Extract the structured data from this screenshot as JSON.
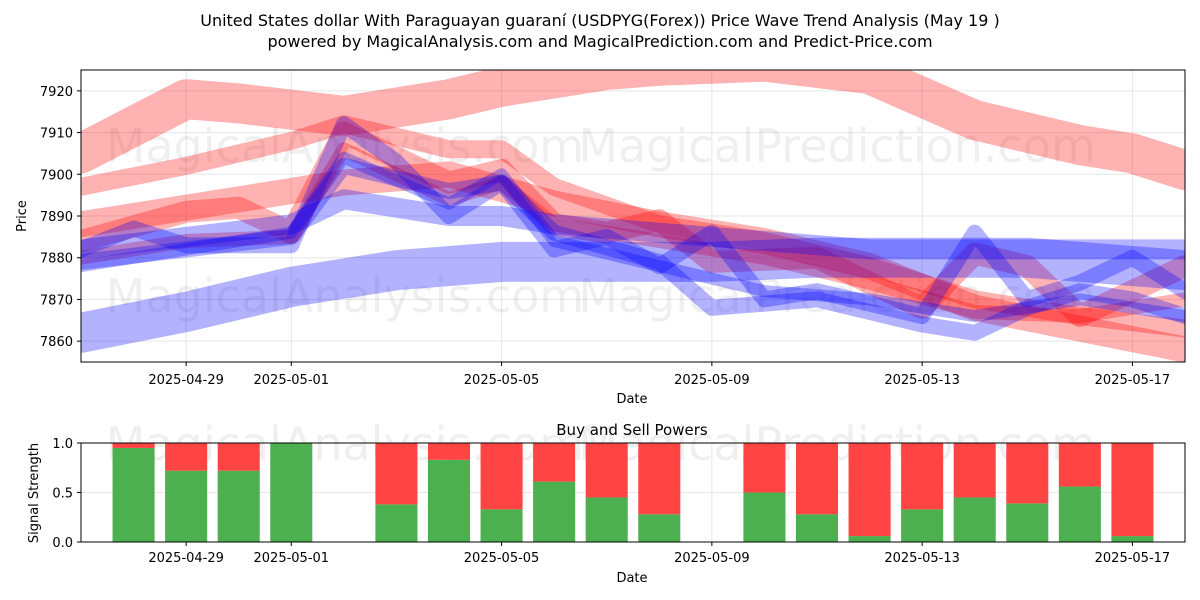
{
  "title_line1": "United States dollar With Paraguayan guaraní (USDPYG(Forex)) Price Wave Trend Analysis (May 19 )",
  "title_line2": "powered by MagicalAnalysis.com and MagicalPrediction.com and Predict-Price.com",
  "watermarks": [
    "MagicalAnalysis.com",
    "MagicalPrediction.com"
  ],
  "colors": {
    "red": "#ff0000",
    "blue": "#0000ff",
    "buy": "#4caf50",
    "sell": "#ff4444"
  },
  "chart_data": [
    {
      "type": "line",
      "title": "",
      "xlabel": "Date",
      "ylabel": "Price",
      "x_ticks": [
        "2025-04-29",
        "2025-05-01",
        "2025-05-05",
        "2025-05-09",
        "2025-05-13",
        "2025-05-17"
      ],
      "y_ticks": [
        7860,
        7870,
        7880,
        7890,
        7900,
        7910,
        7920
      ],
      "xlim": [
        "2025-04-27",
        "2025-05-18"
      ],
      "ylim": [
        7855,
        7925
      ],
      "grid": true,
      "series": [
        {
          "color": "red",
          "width": 40,
          "opacity": 0.3,
          "points": [
            [
              "2025-04-27",
              7905
            ],
            [
              "2025-04-29",
              7918
            ],
            [
              "2025-04-30",
              7917
            ],
            [
              "2025-05-02",
              7914
            ],
            [
              "2025-05-04",
              7918
            ],
            [
              "2025-05-05",
              7921
            ],
            [
              "2025-05-07",
              7925
            ],
            [
              "2025-05-08",
              7926
            ],
            [
              "2025-05-10",
              7927
            ],
            [
              "2025-05-12",
              7924
            ],
            [
              "2025-05-14",
              7913
            ],
            [
              "2025-05-16",
              7907
            ],
            [
              "2025-05-17",
              7905
            ],
            [
              "2025-05-18",
              7901
            ]
          ]
        },
        {
          "color": "red",
          "width": 26,
          "opacity": 0.3,
          "points": [
            [
              "2025-04-27",
              7888
            ],
            [
              "2025-04-29",
              7892
            ],
            [
              "2025-05-01",
              7896
            ],
            [
              "2025-05-02",
              7898
            ],
            [
              "2025-05-04",
              7900
            ],
            [
              "2025-05-06",
              7893
            ],
            [
              "2025-05-08",
              7888
            ],
            [
              "2025-05-10",
              7884
            ],
            [
              "2025-05-12",
              7878
            ],
            [
              "2025-05-14",
              7868
            ],
            [
              "2025-05-16",
              7863
            ],
            [
              "2025-05-18",
              7858
            ]
          ]
        },
        {
          "color": "red",
          "width": 18,
          "opacity": 0.3,
          "points": [
            [
              "2025-04-27",
              7897
            ],
            [
              "2025-04-29",
              7902
            ],
            [
              "2025-05-01",
              7908
            ],
            [
              "2025-05-02",
              7912
            ],
            [
              "2025-05-04",
              7906
            ],
            [
              "2025-05-05",
              7906
            ],
            [
              "2025-05-06",
              7897
            ],
            [
              "2025-05-08",
              7888
            ],
            [
              "2025-05-10",
              7884
            ],
            [
              "2025-05-12",
              7878
            ],
            [
              "2025-05-14",
              7870
            ],
            [
              "2025-05-16",
              7866
            ],
            [
              "2025-05-18",
              7863
            ]
          ]
        },
        {
          "color": "red",
          "width": 22,
          "opacity": 0.3,
          "points": [
            [
              "2025-04-27",
              7884
            ],
            [
              "2025-04-29",
              7891
            ],
            [
              "2025-04-30",
              7892
            ],
            [
              "2025-05-01",
              7886
            ],
            [
              "2025-05-02",
              7910
            ],
            [
              "2025-05-03",
              7904
            ],
            [
              "2025-05-04",
              7898
            ],
            [
              "2025-05-05",
              7901
            ],
            [
              "2025-05-06",
              7888
            ],
            [
              "2025-05-07",
              7886
            ],
            [
              "2025-05-08",
              7889
            ],
            [
              "2025-05-09",
              7879
            ],
            [
              "2025-05-11",
              7880
            ],
            [
              "2025-05-13",
              7868
            ],
            [
              "2025-05-14",
              7881
            ],
            [
              "2025-05-15",
              7878
            ],
            [
              "2025-05-16",
              7866
            ],
            [
              "2025-05-17",
              7872
            ],
            [
              "2025-05-18",
              7878
            ]
          ]
        },
        {
          "color": "red",
          "width": 14,
          "opacity": 0.3,
          "points": [
            [
              "2025-04-27",
              7880
            ],
            [
              "2025-04-29",
              7884
            ],
            [
              "2025-05-01",
              7885
            ],
            [
              "2025-05-02",
              7906
            ],
            [
              "2025-05-04",
              7894
            ],
            [
              "2025-05-05",
              7898
            ],
            [
              "2025-05-06",
              7888
            ],
            [
              "2025-05-08",
              7884
            ],
            [
              "2025-05-10",
              7880
            ],
            [
              "2025-05-12",
              7874
            ],
            [
              "2025-05-14",
              7867
            ],
            [
              "2025-05-16",
              7866
            ],
            [
              "2025-05-18",
              7870
            ]
          ]
        },
        {
          "color": "blue",
          "width": 40,
          "opacity": 0.3,
          "points": [
            [
              "2025-04-27",
              7862
            ],
            [
              "2025-04-29",
              7867
            ],
            [
              "2025-05-01",
              7873
            ],
            [
              "2025-05-03",
              7877
            ],
            [
              "2025-05-05",
              7879
            ],
            [
              "2025-05-07",
              7879
            ],
            [
              "2025-05-09",
              7879
            ],
            [
              "2025-05-11",
              7880
            ],
            [
              "2025-05-13",
              7880
            ],
            [
              "2025-05-15",
              7880
            ],
            [
              "2025-05-18",
              7877
            ]
          ]
        },
        {
          "color": "blue",
          "width": 20,
          "opacity": 0.3,
          "points": [
            [
              "2025-04-27",
              7882
            ],
            [
              "2025-04-29",
              7885
            ],
            [
              "2025-05-01",
              7888
            ],
            [
              "2025-05-02",
              7894
            ],
            [
              "2025-05-04",
              7890
            ],
            [
              "2025-05-05",
              7890
            ],
            [
              "2025-05-06",
              7888
            ],
            [
              "2025-05-08",
              7886
            ],
            [
              "2025-05-10",
              7884
            ],
            [
              "2025-05-12",
              7882
            ],
            [
              "2025-05-14",
              7882
            ],
            [
              "2025-05-16",
              7882
            ],
            [
              "2025-05-18",
              7882
            ]
          ]
        },
        {
          "color": "blue",
          "width": 16,
          "opacity": 0.3,
          "points": [
            [
              "2025-04-27",
              7882
            ],
            [
              "2025-04-28",
              7887
            ],
            [
              "2025-04-29",
              7883
            ],
            [
              "2025-05-01",
              7883
            ],
            [
              "2025-05-02",
              7912
            ],
            [
              "2025-05-03",
              7903
            ],
            [
              "2025-05-04",
              7890
            ],
            [
              "2025-05-05",
              7898
            ],
            [
              "2025-05-06",
              7882
            ],
            [
              "2025-05-07",
              7885
            ],
            [
              "2025-05-08",
              7878
            ],
            [
              "2025-05-09",
              7886
            ],
            [
              "2025-05-10",
              7870
            ],
            [
              "2025-05-11",
              7872
            ],
            [
              "2025-05-13",
              7866
            ],
            [
              "2025-05-14",
              7886
            ],
            [
              "2025-05-15",
              7870
            ],
            [
              "2025-05-16",
              7874
            ],
            [
              "2025-05-17",
              7880
            ],
            [
              "2025-05-18",
              7872
            ]
          ]
        },
        {
          "color": "blue",
          "width": 16,
          "opacity": 0.3,
          "points": [
            [
              "2025-04-27",
              7879
            ],
            [
              "2025-04-29",
              7882
            ],
            [
              "2025-05-01",
              7885
            ],
            [
              "2025-05-02",
              7902
            ],
            [
              "2025-05-04",
              7896
            ],
            [
              "2025-05-05",
              7898
            ],
            [
              "2025-05-06",
              7886
            ],
            [
              "2025-05-08",
              7879
            ],
            [
              "2025-05-09",
              7868
            ],
            [
              "2025-05-11",
              7870
            ],
            [
              "2025-05-13",
              7864
            ],
            [
              "2025-05-14",
              7862
            ],
            [
              "2025-05-15",
              7868
            ],
            [
              "2025-05-16",
              7872
            ],
            [
              "2025-05-17",
              7870
            ],
            [
              "2025-05-18",
              7866
            ]
          ]
        },
        {
          "color": "blue",
          "width": 12,
          "opacity": 0.3,
          "points": [
            [
              "2025-04-27",
              7878
            ],
            [
              "2025-04-29",
              7882
            ],
            [
              "2025-05-01",
              7886
            ],
            [
              "2025-05-02",
              7904
            ],
            [
              "2025-05-04",
              7893
            ],
            [
              "2025-05-05",
              7900
            ],
            [
              "2025-05-06",
              7884
            ],
            [
              "2025-05-08",
              7878
            ],
            [
              "2025-05-10",
              7872
            ],
            [
              "2025-05-12",
              7870
            ],
            [
              "2025-05-14",
              7866
            ],
            [
              "2025-05-16",
              7870
            ],
            [
              "2025-05-18",
              7866
            ]
          ]
        }
      ]
    },
    {
      "type": "bar",
      "title": "Buy and Sell Powers",
      "xlabel": "Date",
      "ylabel": "Signal Strength",
      "x_ticks": [
        "2025-04-29",
        "2025-05-01",
        "2025-05-05",
        "2025-05-09",
        "2025-05-13",
        "2025-05-17"
      ],
      "y_ticks": [
        "0.0",
        "0.5",
        "1.0"
      ],
      "xlim": [
        "2025-04-27",
        "2025-05-18"
      ],
      "ylim": [
        0,
        1
      ],
      "categories": [
        "2025-04-28",
        "2025-04-29",
        "2025-04-30",
        "2025-05-01",
        "2025-05-03",
        "2025-05-04",
        "2025-05-05",
        "2025-05-06",
        "2025-05-07",
        "2025-05-08",
        "2025-05-10",
        "2025-05-11",
        "2025-05-12",
        "2025-05-13",
        "2025-05-14",
        "2025-05-15",
        "2025-05-16",
        "2025-05-17"
      ],
      "buy": [
        0.95,
        0.72,
        0.72,
        1.0,
        0.38,
        0.83,
        0.33,
        0.61,
        0.45,
        0.28,
        0.5,
        0.28,
        0.06,
        0.33,
        0.45,
        0.39,
        0.56,
        0.06
      ],
      "sell": [
        0.05,
        0.28,
        0.28,
        0.0,
        0.62,
        0.17,
        0.67,
        0.39,
        0.55,
        0.72,
        0.5,
        0.72,
        0.94,
        0.67,
        0.55,
        0.61,
        0.44,
        0.94
      ]
    }
  ]
}
